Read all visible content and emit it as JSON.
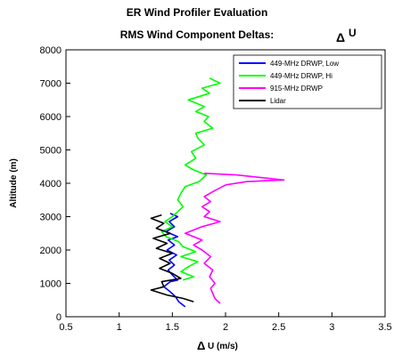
{
  "chart_data": {
    "type": "line",
    "title": "ER Wind Profiler Evaluation",
    "subtitle_text": "RMS Wind Component Deltas:",
    "subtitle_delta": "Δ",
    "subtitle_var": "U",
    "xlabel_delta": "Δ",
    "xlabel_text": "U (m/s)",
    "ylabel": "Altitude (m)",
    "xlim": [
      0.5,
      3.5
    ],
    "ylim": [
      0,
      8000
    ],
    "xticks": [
      "0.5",
      "1",
      "1.5",
      "2",
      "2.5",
      "3",
      "3.5"
    ],
    "yticks": [
      "0",
      "1000",
      "2000",
      "3000",
      "4000",
      "5000",
      "6000",
      "7000",
      "8000"
    ],
    "grid": false,
    "legend_position": "top-right",
    "series": [
      {
        "name": "449-MHz DRWP, Low",
        "color": "#0000ff",
        "points": [
          [
            1.62,
            300
          ],
          [
            1.56,
            450
          ],
          [
            1.53,
            600
          ],
          [
            1.48,
            750
          ],
          [
            1.42,
            900
          ],
          [
            1.48,
            1050
          ],
          [
            1.55,
            1100
          ],
          [
            1.5,
            1250
          ],
          [
            1.46,
            1400
          ],
          [
            1.52,
            1550
          ],
          [
            1.47,
            1700
          ],
          [
            1.54,
            1850
          ],
          [
            1.45,
            2000
          ],
          [
            1.52,
            2150
          ],
          [
            1.46,
            2300
          ],
          [
            1.55,
            2400
          ],
          [
            1.44,
            2550
          ],
          [
            1.52,
            2700
          ],
          [
            1.47,
            2850
          ],
          [
            1.55,
            3000
          ],
          [
            1.48,
            3100
          ]
        ]
      },
      {
        "name": "449-MHz DRWP, Hi",
        "color": "#00ff00",
        "points": [
          [
            1.6,
            1100
          ],
          [
            1.7,
            1200
          ],
          [
            1.58,
            1350
          ],
          [
            1.65,
            1500
          ],
          [
            1.74,
            1650
          ],
          [
            1.58,
            1800
          ],
          [
            1.72,
            1950
          ],
          [
            1.6,
            2100
          ],
          [
            1.56,
            2250
          ],
          [
            1.44,
            2400
          ],
          [
            1.4,
            2550
          ],
          [
            1.5,
            2700
          ],
          [
            1.43,
            2850
          ],
          [
            1.5,
            3000
          ],
          [
            1.55,
            3150
          ],
          [
            1.6,
            3300
          ],
          [
            1.55,
            3500
          ],
          [
            1.58,
            3700
          ],
          [
            1.62,
            3900
          ],
          [
            1.75,
            4050
          ],
          [
            1.82,
            4250
          ],
          [
            1.7,
            4400
          ],
          [
            1.62,
            4550
          ],
          [
            1.72,
            4750
          ],
          [
            1.68,
            4950
          ],
          [
            1.8,
            5150
          ],
          [
            1.74,
            5350
          ],
          [
            1.72,
            5500
          ],
          [
            1.88,
            5650
          ],
          [
            1.8,
            5850
          ],
          [
            1.84,
            6000
          ],
          [
            1.72,
            6150
          ],
          [
            1.8,
            6300
          ],
          [
            1.65,
            6500
          ],
          [
            1.85,
            6700
          ],
          [
            1.78,
            6850
          ],
          [
            1.95,
            7000
          ],
          [
            1.85,
            7150
          ]
        ]
      },
      {
        "name": "915-MHz DRWP",
        "color": "#ff00ff",
        "points": [
          [
            1.95,
            400
          ],
          [
            1.9,
            550
          ],
          [
            1.88,
            700
          ],
          [
            1.86,
            850
          ],
          [
            1.9,
            1000
          ],
          [
            1.85,
            1200
          ],
          [
            1.88,
            1400
          ],
          [
            1.8,
            1600
          ],
          [
            1.86,
            1800
          ],
          [
            1.78,
            2000
          ],
          [
            1.7,
            2150
          ],
          [
            1.78,
            2300
          ],
          [
            1.62,
            2500
          ],
          [
            1.78,
            2700
          ],
          [
            1.95,
            2850
          ],
          [
            1.8,
            3000
          ],
          [
            1.85,
            3150
          ],
          [
            1.78,
            3300
          ],
          [
            1.86,
            3450
          ],
          [
            1.8,
            3600
          ],
          [
            1.88,
            3750
          ],
          [
            2.0,
            3950
          ],
          [
            2.2,
            4050
          ],
          [
            2.55,
            4100
          ],
          [
            2.1,
            4250
          ],
          [
            1.8,
            4300
          ]
        ]
      },
      {
        "name": "Lidar",
        "color": "#000000",
        "points": [
          [
            1.7,
            450
          ],
          [
            1.6,
            550
          ],
          [
            1.45,
            650
          ],
          [
            1.3,
            800
          ],
          [
            1.42,
            900
          ],
          [
            1.4,
            1050
          ],
          [
            1.58,
            1150
          ],
          [
            1.5,
            1300
          ],
          [
            1.38,
            1450
          ],
          [
            1.48,
            1600
          ],
          [
            1.38,
            1750
          ],
          [
            1.5,
            1900
          ],
          [
            1.35,
            2050
          ],
          [
            1.45,
            2200
          ],
          [
            1.32,
            2350
          ],
          [
            1.48,
            2500
          ],
          [
            1.35,
            2650
          ],
          [
            1.42,
            2800
          ],
          [
            1.3,
            2950
          ],
          [
            1.4,
            3050
          ]
        ]
      }
    ]
  }
}
